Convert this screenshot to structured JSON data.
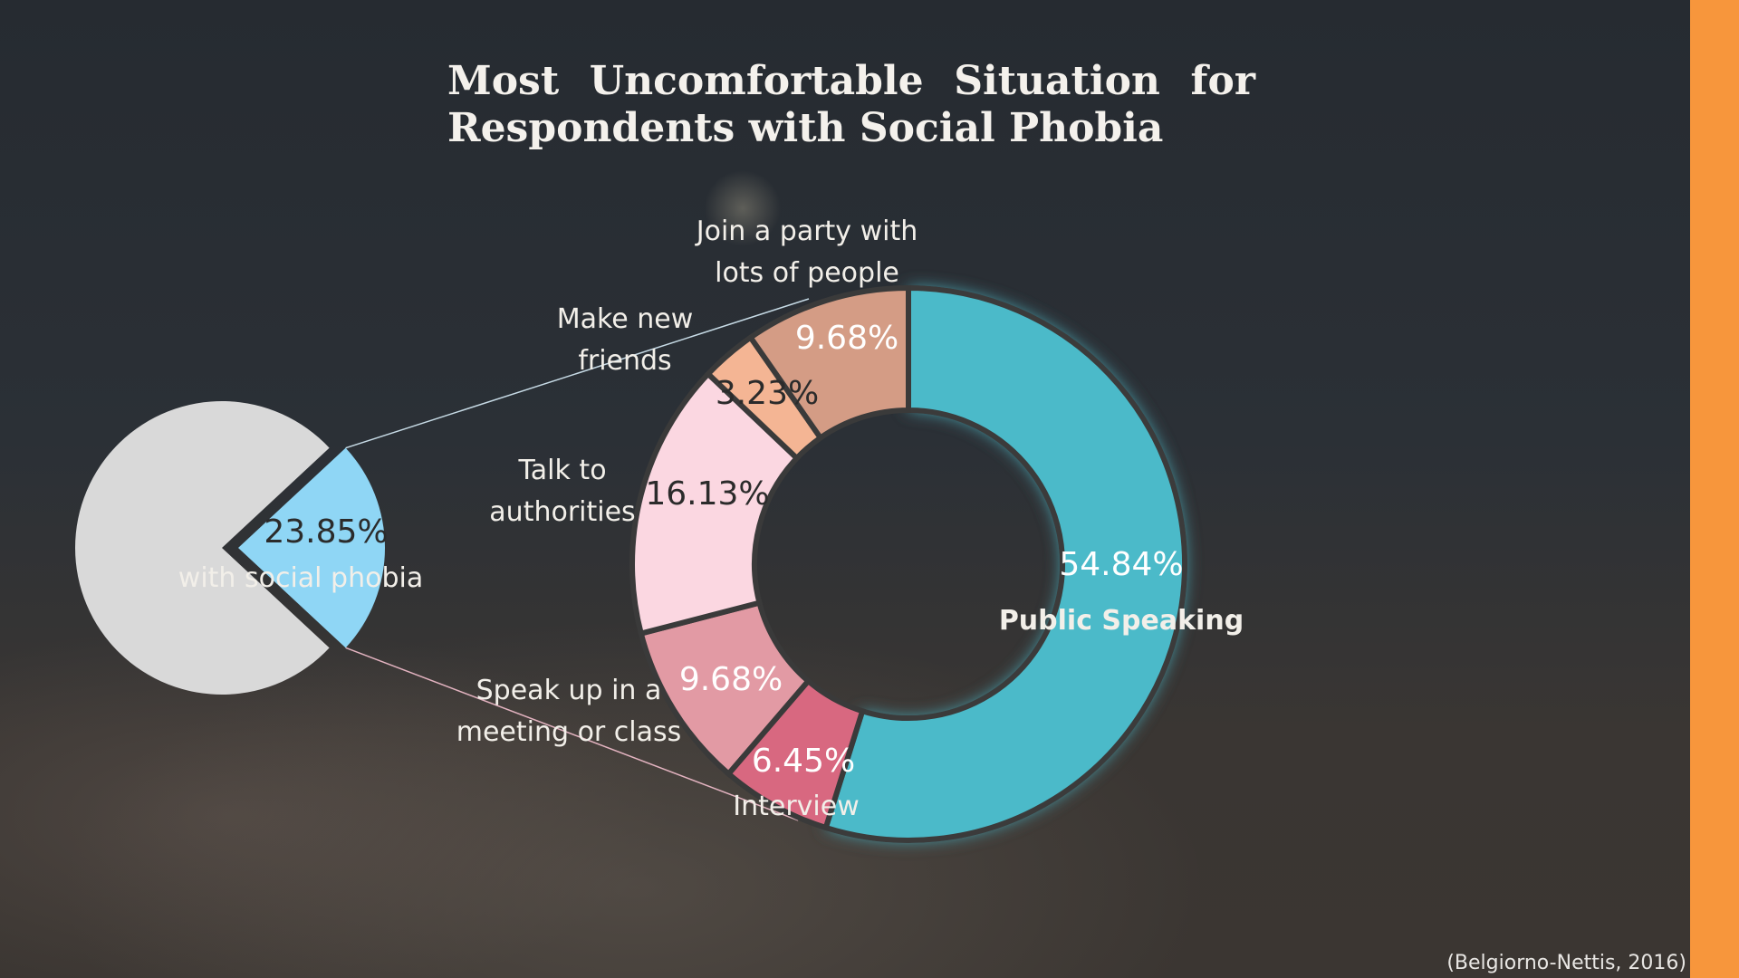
{
  "title": {
    "line1": "Most Uncomfortable Situation for",
    "line2": "Respondents with Social Phobia"
  },
  "citation": "(Belgiorno-Nettis, 2016)",
  "colors": {
    "accent_bar": "#f7963c",
    "pie_rest": "#d9d9d9",
    "pie_highlight": "#8fd6f5",
    "public_speaking": "#4cbac9",
    "interview": "#d86880",
    "speak_up": "#e29aa4",
    "authorities": "#fbd7e1",
    "new_friends": "#f4b594",
    "party": "#d49c85"
  },
  "chart_data": [
    {
      "type": "pie",
      "slices": [
        {
          "label": "with social phobia",
          "value": 23.85,
          "display": "23.85%"
        },
        {
          "label": "",
          "value": 76.15
        }
      ]
    },
    {
      "type": "pie",
      "style": "donut",
      "slices": [
        {
          "label": "Public Speaking",
          "value": 54.84,
          "display": "54.84%",
          "label_lines": [
            "Public Speaking"
          ]
        },
        {
          "label": "Interview",
          "value": 6.45,
          "display": "6.45%",
          "label_lines": [
            "Interview"
          ]
        },
        {
          "label": "Speak up in a meeting or class",
          "value": 9.68,
          "display": "9.68%",
          "label_lines": [
            "Speak up in a",
            "meeting or class"
          ]
        },
        {
          "label": "Talk to authorities",
          "value": 16.13,
          "display": "16.13%",
          "label_lines": [
            "Talk to",
            "authorities"
          ]
        },
        {
          "label": "Make new friends",
          "value": 3.23,
          "display": "3.23%",
          "label_lines": [
            "Make new",
            "friends"
          ]
        },
        {
          "label": "Join a party with lots of people",
          "value": 9.68,
          "display": "9.68%",
          "label_lines": [
            "Join a party with",
            "lots of people"
          ]
        }
      ]
    }
  ]
}
